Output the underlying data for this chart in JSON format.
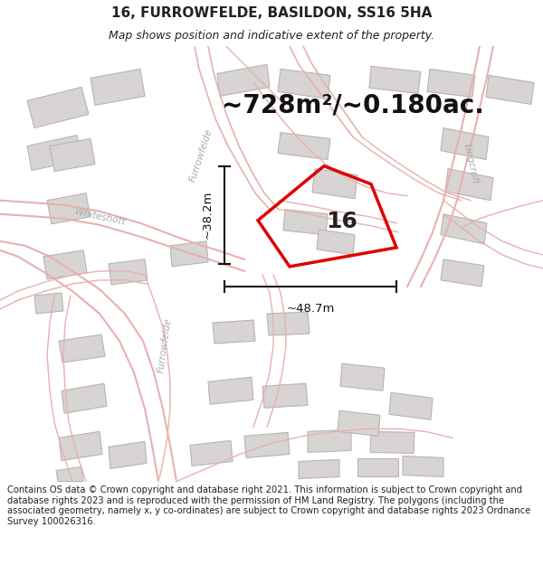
{
  "title": "16, FURROWFELDE, BASILDON, SS16 5HA",
  "subtitle": "Map shows position and indicative extent of the property.",
  "area_text": "~728m²/~0.180ac.",
  "label_16": "16",
  "dim_width": "~48.7m",
  "dim_height": "~38.2m",
  "footer": "Contains OS data © Crown copyright and database right 2021. This information is subject to Crown copyright and database rights 2023 and is reproduced with the permission of HM Land Registry. The polygons (including the associated geometry, namely x, y co-ordinates) are subject to Crown copyright and database rights 2023 Ordnance Survey 100026316.",
  "bg_color": "#ffffff",
  "map_bg": "#f7f5f5",
  "road_line_color": "#e8b0b0",
  "road_fill_color": "#f5eded",
  "building_fill": "#d8d4d4",
  "building_edge": "#b8b4b4",
  "plot_color": "#dd0000",
  "plot_fill": "none",
  "text_color": "#222222",
  "road_label_color": "#aaaaaa",
  "area_color": "#111111",
  "title_fontsize": 11,
  "subtitle_fontsize": 9,
  "area_fontsize": 20,
  "label_fontsize": 18,
  "dim_fontsize": 9.5,
  "footer_fontsize": 7.2,
  "road_lw": 1.0,
  "plot_lw": 2.5
}
